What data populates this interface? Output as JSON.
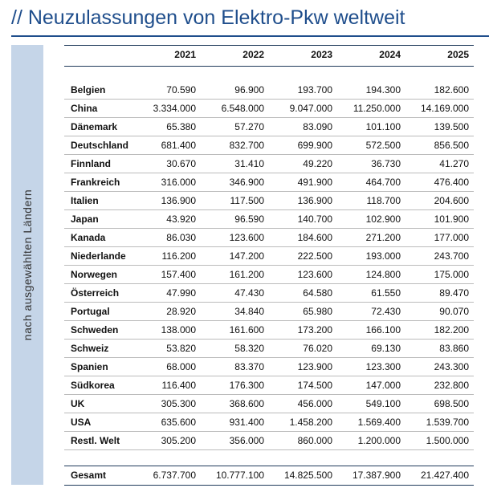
{
  "title": "// Neuzulassungen von Elektro-Pkw weltweit",
  "side_label": "nach ausgewählten Ländern",
  "table": {
    "header": [
      "2021",
      "2022",
      "2023",
      "2024",
      "2025"
    ],
    "rows": [
      {
        "label": "Belgien",
        "values": [
          "70.590",
          "96.900",
          "193.700",
          "194.300",
          "182.600"
        ]
      },
      {
        "label": "China",
        "values": [
          "3.334.000",
          "6.548.000",
          "9.047.000",
          "11.250.000",
          "14.169.000"
        ]
      },
      {
        "label": "Dänemark",
        "values": [
          "65.380",
          "57.270",
          "83.090",
          "101.100",
          "139.500"
        ]
      },
      {
        "label": "Deutschland",
        "values": [
          "681.400",
          "832.700",
          "699.900",
          "572.500",
          "856.500"
        ]
      },
      {
        "label": "Finnland",
        "values": [
          "30.670",
          "31.410",
          "49.220",
          "36.730",
          "41.270"
        ]
      },
      {
        "label": "Frankreich",
        "values": [
          "316.000",
          "346.900",
          "491.900",
          "464.700",
          "476.400"
        ]
      },
      {
        "label": "Italien",
        "values": [
          "136.900",
          "117.500",
          "136.900",
          "118.700",
          "204.600"
        ]
      },
      {
        "label": "Japan",
        "values": [
          "43.920",
          "96.590",
          "140.700",
          "102.900",
          "101.900"
        ]
      },
      {
        "label": "Kanada",
        "values": [
          "86.030",
          "123.600",
          "184.600",
          "271.200",
          "177.000"
        ]
      },
      {
        "label": "Niederlande",
        "values": [
          "116.200",
          "147.200",
          "222.500",
          "193.000",
          "243.700"
        ]
      },
      {
        "label": "Norwegen",
        "values": [
          "157.400",
          "161.200",
          "123.600",
          "124.800",
          "175.000"
        ]
      },
      {
        "label": "Österreich",
        "values": [
          "47.990",
          "47.430",
          "64.580",
          "61.550",
          "89.470"
        ]
      },
      {
        "label": "Portugal",
        "values": [
          "28.920",
          "34.840",
          "65.980",
          "72.430",
          "90.070"
        ]
      },
      {
        "label": "Schweden",
        "values": [
          "138.000",
          "161.600",
          "173.200",
          "166.100",
          "182.200"
        ]
      },
      {
        "label": "Schweiz",
        "values": [
          "53.820",
          "58.320",
          "76.020",
          "69.130",
          "83.860"
        ]
      },
      {
        "label": "Spanien",
        "values": [
          "68.000",
          "83.370",
          "123.900",
          "123.300",
          "243.300"
        ]
      },
      {
        "label": "Südkorea",
        "values": [
          "116.400",
          "176.300",
          "174.500",
          "147.000",
          "232.800"
        ]
      },
      {
        "label": "UK",
        "values": [
          "305.300",
          "368.600",
          "456.000",
          "549.100",
          "698.500"
        ]
      },
      {
        "label": "USA",
        "values": [
          "635.600",
          "931.400",
          "1.458.200",
          "1.569.400",
          "1.539.700"
        ]
      },
      {
        "label": "Restl. Welt",
        "values": [
          "305.200",
          "356.000",
          "860.000",
          "1.200.000",
          "1.500.000"
        ]
      }
    ],
    "total": {
      "label": "Gesamt",
      "values": [
        "6.737.700",
        "10.777.100",
        "14.825.500",
        "17.387.900",
        "21.427.400"
      ]
    }
  }
}
